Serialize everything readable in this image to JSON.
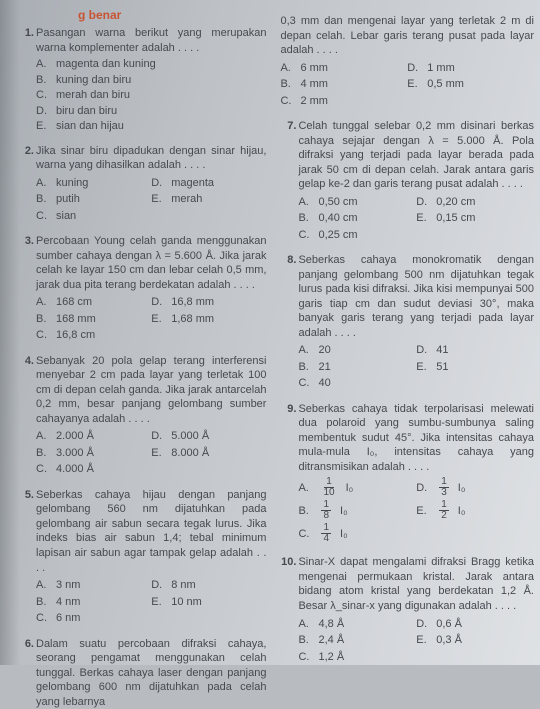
{
  "headerFrag": "g benar",
  "left": [
    {
      "n": "1.",
      "stem": "Pasangan warna berikut yang merupakan warna komplementer adalah . . . .",
      "opts": [
        [
          "A.",
          "magenta dan kuning"
        ],
        [
          "B.",
          "kuning dan biru"
        ],
        [
          "C.",
          "merah dan biru"
        ],
        [
          "D.",
          "biru dan biru"
        ],
        [
          "E.",
          "sian dan hijau"
        ]
      ]
    },
    {
      "n": "2.",
      "stem": "Jika sinar biru dipadukan dengan sinar hijau, warna yang dihasilkan adalah . . . .",
      "opts2": [
        [
          [
            "A.",
            "kuning"
          ],
          [
            "D.",
            "magenta"
          ]
        ],
        [
          [
            "B.",
            "putih"
          ],
          [
            "E.",
            "merah"
          ]
        ],
        [
          [
            "C.",
            "sian"
          ],
          [
            "",
            ""
          ]
        ]
      ]
    },
    {
      "n": "3.",
      "stem": "Percobaan Young celah ganda menggunakan sumber cahaya dengan λ = 5.600 Å. Jika jarak celah ke layar 150 cm dan lebar celah 0,5 mm, jarak dua pita terang berdekatan adalah . . . .",
      "opts2": [
        [
          [
            "A.",
            "168 cm"
          ],
          [
            "D.",
            "16,8 mm"
          ]
        ],
        [
          [
            "B.",
            "168 mm"
          ],
          [
            "E.",
            "1,68 mm"
          ]
        ],
        [
          [
            "C.",
            "16,8 cm"
          ],
          [
            "",
            ""
          ]
        ]
      ]
    },
    {
      "n": "4.",
      "stem": "Sebanyak 20 pola gelap terang interferensi menyebar 2 cm pada layar yang terletak 100 cm di depan celah ganda. Jika jarak antarcelah 0,2 mm, besar panjang gelombang sumber cahayanya adalah . . . .",
      "opts2": [
        [
          [
            "A.",
            "2.000 Å"
          ],
          [
            "D.",
            "5.000 Å"
          ]
        ],
        [
          [
            "B.",
            "3.000 Å"
          ],
          [
            "E.",
            "8.000 Å"
          ]
        ],
        [
          [
            "C.",
            "4.000 Å"
          ],
          [
            "",
            ""
          ]
        ]
      ]
    },
    {
      "n": "5.",
      "stem": "Seberkas cahaya hijau dengan panjang gelombang 560 nm dijatuhkan pada gelombang air sabun secara tegak lurus. Jika indeks bias air sabun 1,4; tebal minimum lapisan air sabun agar tampak gelap adalah . . . .",
      "opts2": [
        [
          [
            "A.",
            "3 nm"
          ],
          [
            "D.",
            "8 nm"
          ]
        ],
        [
          [
            "B.",
            "4 nm"
          ],
          [
            "E.",
            "10 nm"
          ]
        ],
        [
          [
            "C.",
            "6 nm"
          ],
          [
            "",
            ""
          ]
        ]
      ]
    },
    {
      "n": "6.",
      "stem": "Dalam suatu percobaan difraksi cahaya, seorang pengamat menggunakan celah tunggal. Berkas cahaya laser dengan panjang gelombang 600 nm dijatuhkan pada celah yang lebarnya"
    }
  ],
  "right": [
    {
      "stem": "0,3 mm dan mengenai layar yang terletak 2 m di depan celah. Lebar garis terang pusat pada layar adalah . . . .",
      "opts2": [
        [
          [
            "A.",
            "6 mm"
          ],
          [
            "D.",
            "1 mm"
          ]
        ],
        [
          [
            "B.",
            "4 mm"
          ],
          [
            "E.",
            "0,5 mm"
          ]
        ],
        [
          [
            "C.",
            "2 mm"
          ],
          [
            "",
            ""
          ]
        ]
      ]
    },
    {
      "n": "7.",
      "stem": "Celah tunggal selebar 0,2 mm disinari berkas cahaya sejajar dengan λ = 5.000 Å. Pola difraksi yang terjadi pada layar berada pada jarak 50 cm di depan celah. Jarak antara garis gelap ke-2 dan garis terang pusat adalah . . . .",
      "opts2": [
        [
          [
            "A.",
            "0,50 cm"
          ],
          [
            "D.",
            "0,20 cm"
          ]
        ],
        [
          [
            "B.",
            "0,40 cm"
          ],
          [
            "E.",
            "0,15 cm"
          ]
        ],
        [
          [
            "C.",
            "0,25 cm"
          ],
          [
            "",
            ""
          ]
        ]
      ]
    },
    {
      "n": "8.",
      "stem": "Seberkas cahaya monokromatik dengan panjang gelombang 500 nm dijatuhkan tegak lurus pada kisi difraksi. Jika kisi mempunyai 500 garis tiap cm dan sudut deviasi 30°, maka banyak garis terang yang terjadi pada layar adalah . . . .",
      "opts2": [
        [
          [
            "A.",
            "20"
          ],
          [
            "D.",
            "41"
          ]
        ],
        [
          [
            "B.",
            "21"
          ],
          [
            "E.",
            "51"
          ]
        ],
        [
          [
            "C.",
            "40"
          ],
          [
            "",
            ""
          ]
        ]
      ]
    },
    {
      "n": "9.",
      "stem": "Seberkas cahaya tidak terpolarisasi melewati dua polaroid yang sumbu-sumbunya saling membentuk sudut 45°. Jika intensitas cahaya mula-mula I₀, intensitas cahaya yang ditransmisikan adalah . . . .",
      "fracOpts": true
    },
    {
      "n": "10.",
      "stem": "Sinar-X dapat mengalami difraksi Bragg ketika mengenai permukaan kristal. Jarak antara bidang atom kristal yang berdekatan 1,2 Å. Besar λ_sinar-x yang digunakan adalah . . . .",
      "opts2": [
        [
          [
            "A.",
            "4,8 Å"
          ],
          [
            "D.",
            "0,6 Å"
          ]
        ],
        [
          [
            "B.",
            "2,4 Å"
          ],
          [
            "E.",
            "0,3 Å"
          ]
        ],
        [
          [
            "C.",
            "1,2 Å"
          ],
          [
            "",
            ""
          ]
        ]
      ]
    }
  ],
  "frac": {
    "rows": [
      [
        [
          "A.",
          "1",
          "10"
        ],
        [
          "D.",
          "1",
          "3"
        ]
      ],
      [
        [
          "B.",
          "1",
          "8"
        ],
        [
          "E.",
          "1",
          "2"
        ]
      ],
      [
        [
          "C.",
          "1",
          "4"
        ],
        [
          "",
          ""
        ]
      ]
    ],
    "suffix": "I₀"
  }
}
